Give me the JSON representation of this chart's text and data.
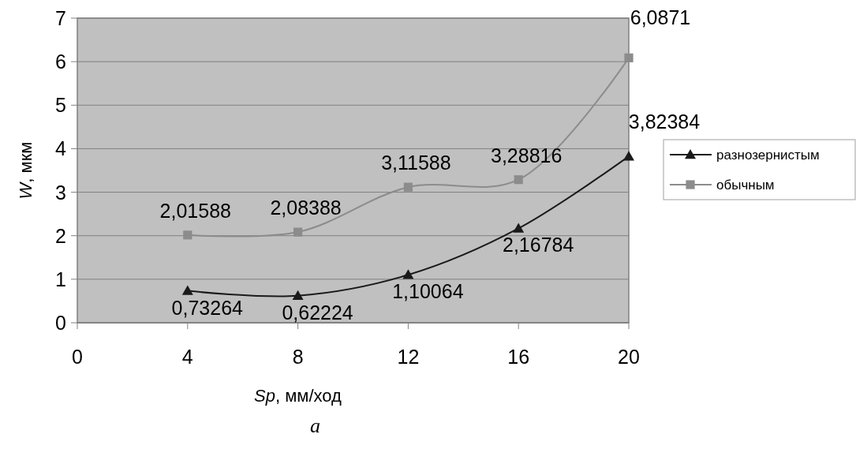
{
  "chart_data": {
    "type": "line",
    "xlabel": "Sp, мм/ход",
    "ylabel": "W, мкм",
    "annotations": [
      "a"
    ],
    "x": [
      4,
      8,
      12,
      16,
      20
    ],
    "series": [
      {
        "name": "разнозернистым",
        "color": "#1a1a1a",
        "marker": "triangle",
        "values": [
          0.73264,
          0.62224,
          1.10064,
          2.16784,
          3.82384
        ],
        "value_labels": [
          "0,73264",
          "0,62224",
          "1,10064",
          "2,16784",
          "3,82384"
        ]
      },
      {
        "name": "обычным",
        "color": "#8c8c8c",
        "marker": "square",
        "values": [
          2.01588,
          2.08388,
          3.11588,
          3.28816,
          6.0871
        ],
        "value_labels": [
          "2,01588",
          "2,08388",
          "3,11588",
          "3,28816",
          "6,0871"
        ]
      }
    ],
    "xlim": [
      0,
      20
    ],
    "xticks": [
      0,
      4,
      8,
      12,
      16,
      20
    ],
    "ylim": [
      0,
      7
    ],
    "yticks": [
      0,
      1,
      2,
      3,
      4,
      5,
      6,
      7
    ],
    "grid": "y",
    "legend": "right",
    "line_style": "solid"
  }
}
